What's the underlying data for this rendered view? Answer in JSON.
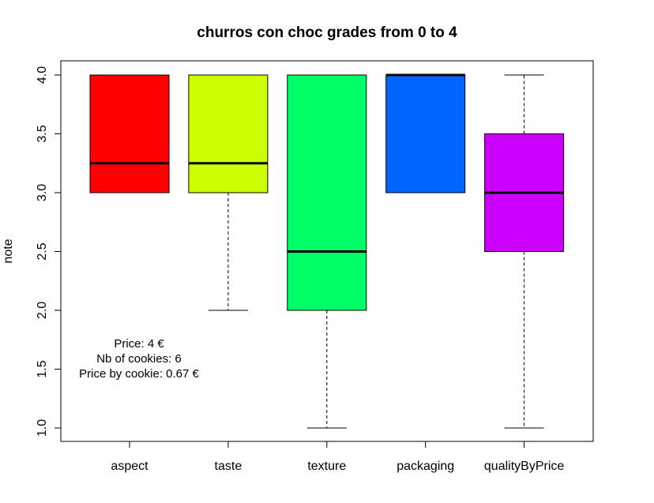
{
  "chart_data": {
    "type": "boxplot",
    "title": "churros con choc grades from 0 to 4",
    "xlabel": "",
    "ylabel": "note",
    "ylim": [
      1.0,
      4.0
    ],
    "yticks": [
      "1.0",
      "1.5",
      "2.0",
      "2.5",
      "3.0",
      "3.5",
      "4.0"
    ],
    "grid": false,
    "categories": [
      "aspect",
      "taste",
      "texture",
      "packaging",
      "qualityByPrice"
    ],
    "boxes": [
      {
        "category": "aspect",
        "whisker_low": 3.0,
        "q1": 3.0,
        "median": 3.25,
        "q3": 4.0,
        "whisker_high": 4.0,
        "color": "#FF0000"
      },
      {
        "category": "taste",
        "whisker_low": 2.0,
        "q1": 3.0,
        "median": 3.25,
        "q3": 4.0,
        "whisker_high": 4.0,
        "color": "#CCFF00"
      },
      {
        "category": "texture",
        "whisker_low": 1.0,
        "q1": 2.0,
        "median": 2.5,
        "q3": 4.0,
        "whisker_high": 4.0,
        "color": "#00FF66"
      },
      {
        "category": "packaging",
        "whisker_low": 3.0,
        "q1": 3.0,
        "median": 4.0,
        "q3": 4.0,
        "whisker_high": 4.0,
        "color": "#0066FF"
      },
      {
        "category": "qualityByPrice",
        "whisker_low": 1.0,
        "q1": 2.5,
        "median": 3.0,
        "q3": 3.5,
        "whisker_high": 4.0,
        "color": "#CC00FF"
      }
    ],
    "annotations": [
      "Price: 4 €",
      "Nb of cookies: 6",
      "Price by cookie: 0.67 €"
    ]
  }
}
